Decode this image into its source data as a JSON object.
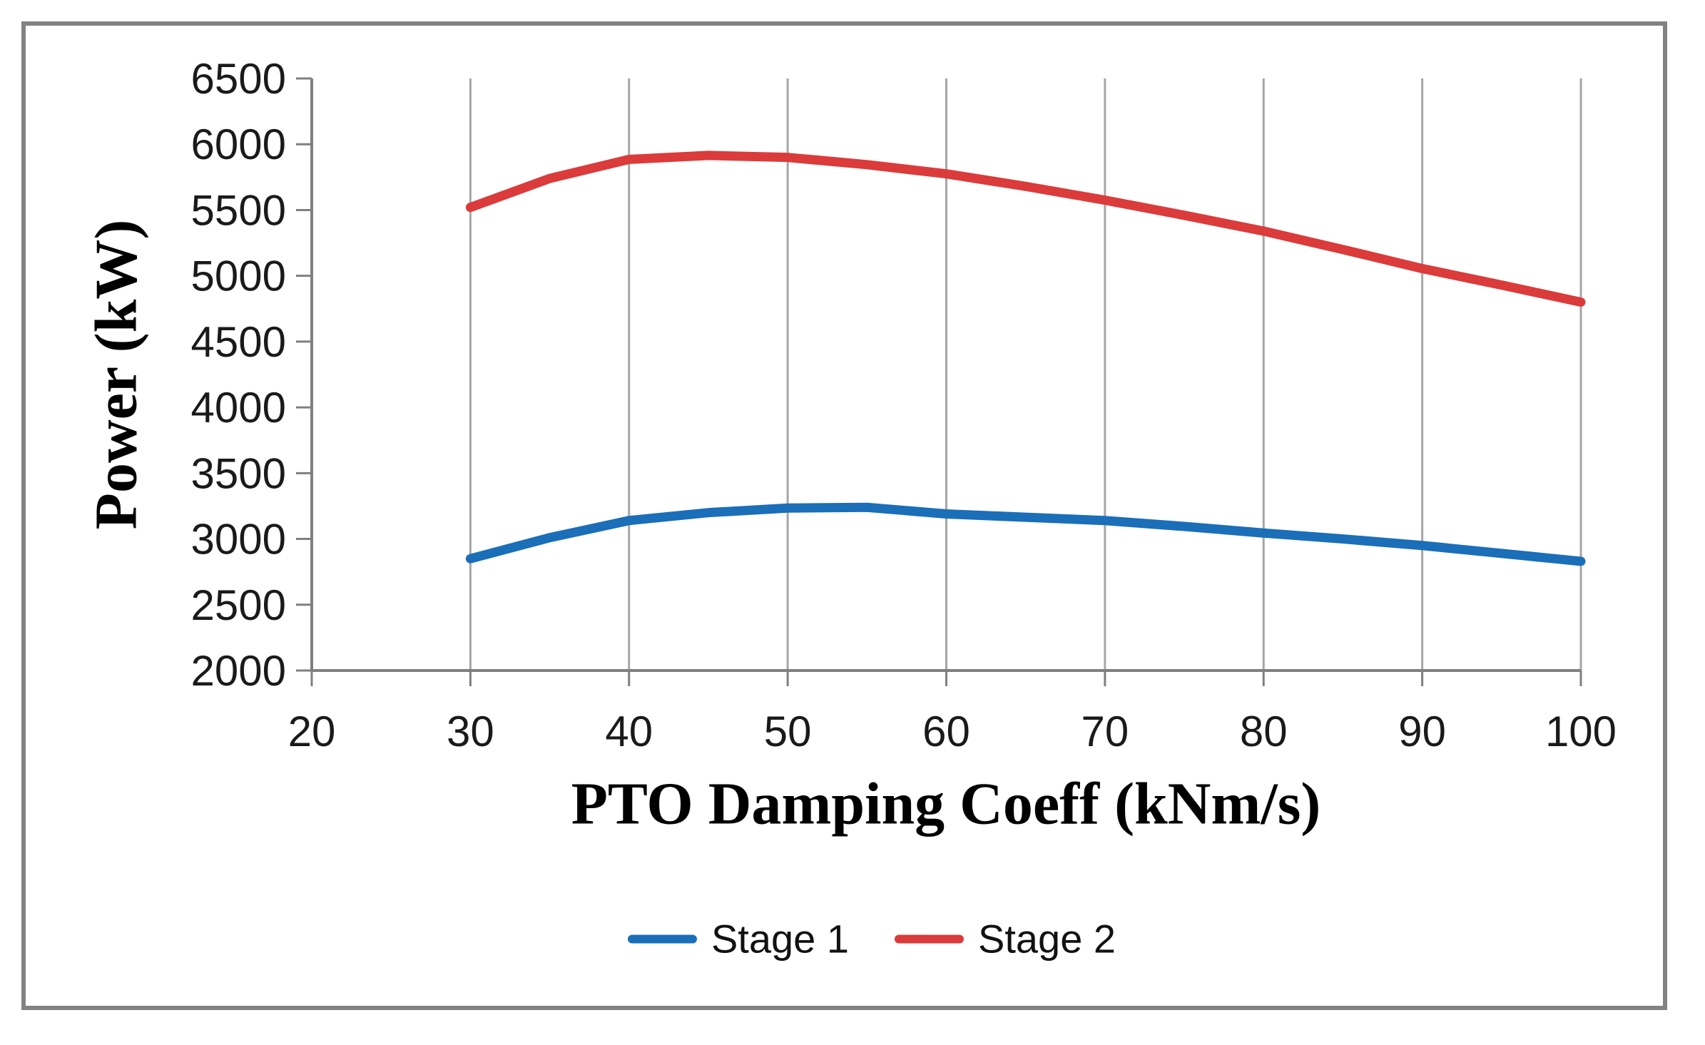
{
  "figure": {
    "background": "#ffffff",
    "border_color": "#828282"
  },
  "chart_data": {
    "type": "line",
    "title": "",
    "xlabel": "PTO Damping Coeff (kNm/s)",
    "ylabel": "Power (kW)",
    "xlim": [
      20,
      100
    ],
    "ylim": [
      2000,
      6500
    ],
    "x_ticks": [
      20,
      30,
      40,
      50,
      60,
      70,
      80,
      90,
      100
    ],
    "y_ticks": [
      2000,
      2500,
      3000,
      3500,
      4000,
      4500,
      5000,
      5500,
      6000,
      6500
    ],
    "grid": "vertical-only",
    "legend_position": "bottom",
    "x": [
      30,
      35,
      40,
      45,
      50,
      55,
      60,
      65,
      70,
      75,
      80,
      85,
      90,
      95,
      100
    ],
    "series": [
      {
        "name": "Stage 1",
        "color": "#1b6eb8",
        "values": [
          2850,
          3010,
          3140,
          3200,
          3235,
          3240,
          3190,
          3165,
          3140,
          3095,
          3045,
          3000,
          2950,
          2890,
          2830
        ]
      },
      {
        "name": "Stage 2",
        "color": "#db3b3b",
        "values": [
          5520,
          5740,
          5885,
          5915,
          5900,
          5845,
          5775,
          5680,
          5575,
          5460,
          5340,
          5200,
          5055,
          4930,
          4800
        ]
      }
    ],
    "gridline_color": "#a6a6a6",
    "axis_color": "#7f7f7f",
    "tick_label_color": "#1a1a1a"
  }
}
